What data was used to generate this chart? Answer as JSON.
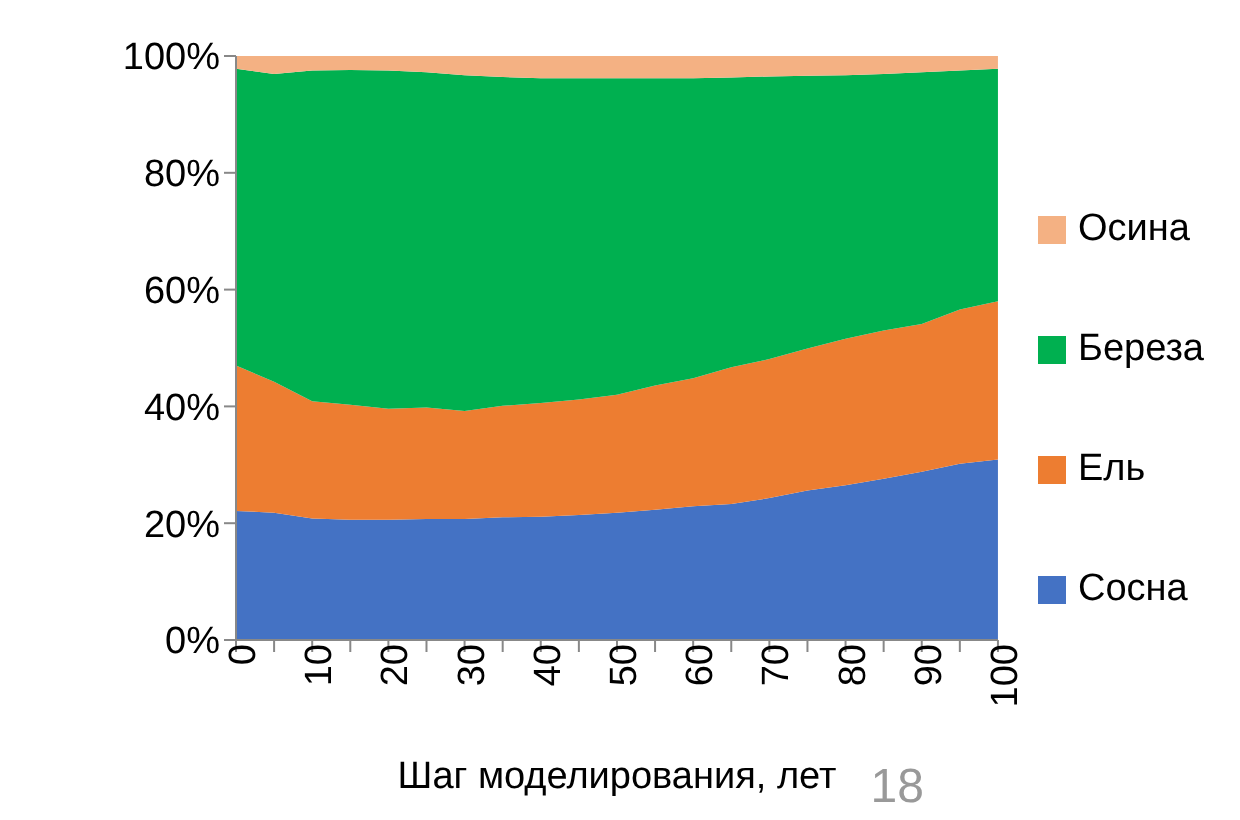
{
  "chart_data": {
    "type": "area",
    "xlabel": "Шаг моделирования, лет",
    "stacked": true,
    "legend": "right",
    "grid": false,
    "x": [
      0,
      5,
      10,
      15,
      20,
      25,
      30,
      35,
      40,
      45,
      50,
      55,
      60,
      65,
      70,
      75,
      80,
      85,
      90,
      95,
      100
    ],
    "xlim": [
      0,
      100
    ],
    "xticks": [
      0,
      {
        "value": 5,
        "label": null
      },
      10,
      {
        "value": 15,
        "label": null
      },
      20,
      {
        "value": 25,
        "label": null
      },
      30,
      {
        "value": 35,
        "label": null
      },
      40,
      {
        "value": 45,
        "label": null
      },
      50,
      {
        "value": 55,
        "label": null
      },
      60,
      {
        "value": 65,
        "label": null
      },
      70,
      {
        "value": 75,
        "label": null
      },
      80,
      {
        "value": 85,
        "label": null
      },
      90,
      {
        "value": 95,
        "label": null
      },
      100
    ],
    "ylim": [
      0,
      100
    ],
    "yticks": [
      {
        "value": 0,
        "label": "0%"
      },
      {
        "value": 20,
        "label": "20%"
      },
      {
        "value": 40,
        "label": "40%"
      },
      {
        "value": 60,
        "label": "60%"
      },
      {
        "value": 80,
        "label": "80%"
      },
      {
        "value": 100,
        "label": "100%"
      }
    ],
    "series": [
      {
        "name": "Сосна",
        "color": "#4472c4",
        "values": [
          22.1,
          21.8,
          20.8,
          20.6,
          20.6,
          20.7,
          20.7,
          21.0,
          21.1,
          21.4,
          21.8,
          22.3,
          22.9,
          23.3,
          24.3,
          25.6,
          26.5,
          27.6,
          28.8,
          30.2,
          30.9
        ]
      },
      {
        "name": "Ель",
        "color": "#ed7d31",
        "values": [
          24.9,
          22.4,
          20.1,
          19.7,
          19.0,
          19.1,
          18.5,
          19.1,
          19.5,
          19.8,
          20.2,
          21.3,
          21.9,
          23.4,
          23.8,
          24.3,
          25.1,
          25.4,
          25.3,
          26.4,
          27.1
        ]
      },
      {
        "name": "Береза",
        "color": "#00b050",
        "values": [
          50.8,
          52.7,
          56.6,
          57.3,
          57.9,
          57.4,
          57.5,
          56.3,
          55.6,
          55.0,
          54.2,
          52.6,
          51.4,
          49.6,
          48.4,
          46.7,
          45.1,
          43.9,
          43.1,
          40.9,
          39.8
        ]
      },
      {
        "name": "Осина",
        "color": "#f4b183",
        "values": [
          2.2,
          3.1,
          2.5,
          2.4,
          2.5,
          2.8,
          3.3,
          3.6,
          3.8,
          3.8,
          3.8,
          3.8,
          3.8,
          3.7,
          3.5,
          3.4,
          3.3,
          3.1,
          2.8,
          2.5,
          2.2
        ]
      }
    ],
    "annotations": [
      "18"
    ]
  }
}
